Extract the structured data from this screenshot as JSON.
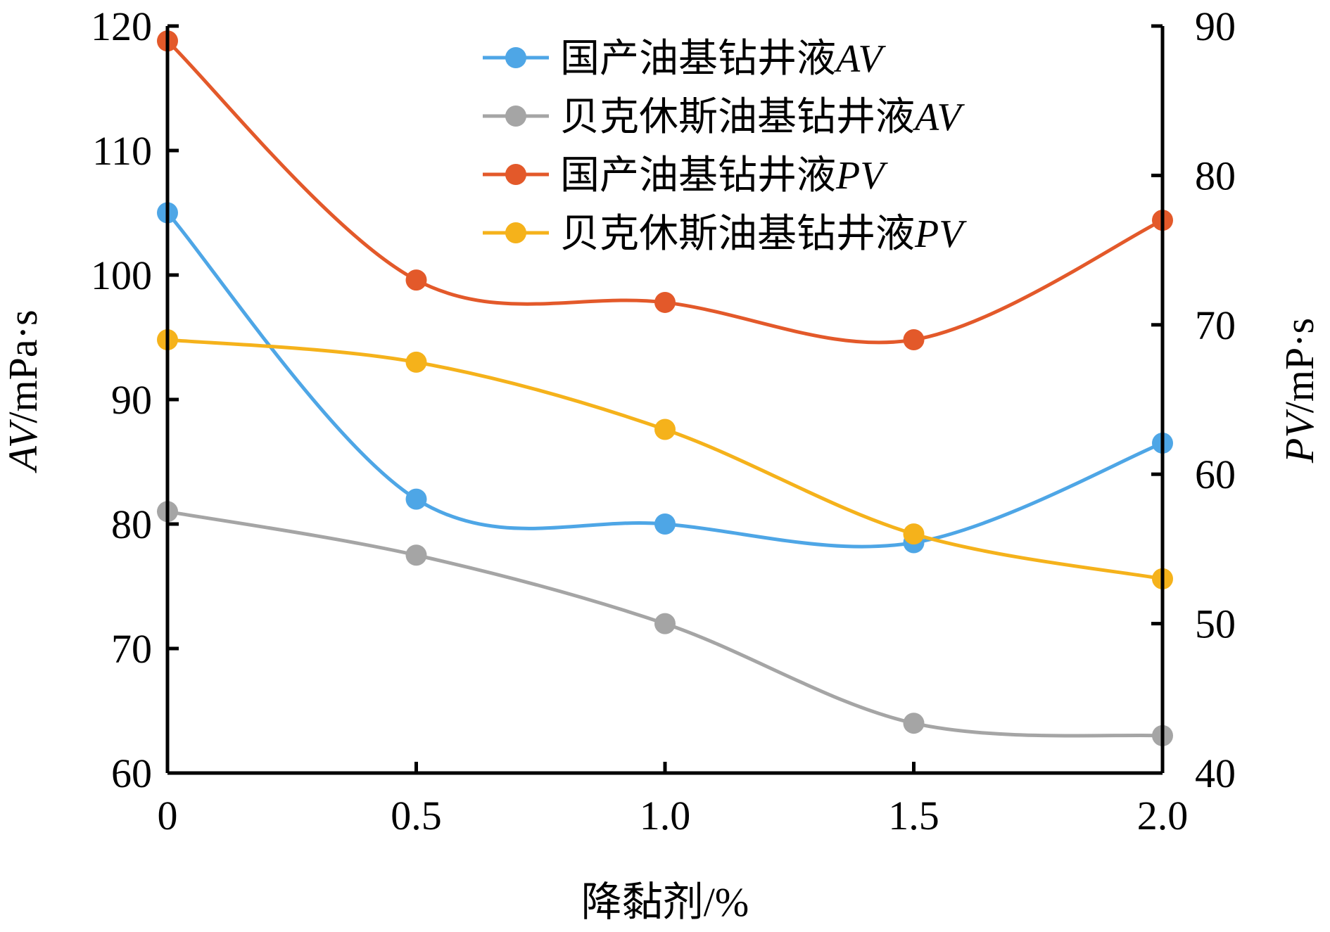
{
  "chart_data": {
    "type": "line",
    "x": [
      0,
      0.5,
      1.0,
      1.5,
      2.0
    ],
    "x_tick_labels": [
      "0",
      "0.5",
      "1.0",
      "1.5",
      "2.0"
    ],
    "xlabel": "降黏剂/%",
    "ylabel_left": {
      "italic": "AV",
      "rest": "/mPa·s"
    },
    "ylabel_right": {
      "italic": "PV",
      "rest": "/mP·s"
    },
    "ylim_left": [
      60,
      120
    ],
    "yticks_left": [
      60,
      70,
      80,
      90,
      100,
      110,
      120
    ],
    "ylim_right": [
      40,
      90
    ],
    "yticks_right": [
      40,
      50,
      60,
      70,
      80,
      90
    ],
    "grid": false,
    "legend_position": "top",
    "series": [
      {
        "name": "国产油基钻井液",
        "name_italic": "AV",
        "axis": "left",
        "color": "#4ea6e6",
        "values": [
          105,
          82,
          80,
          78.5,
          86.5
        ]
      },
      {
        "name": "贝克休斯油基钻井液",
        "name_italic": "AV",
        "axis": "left",
        "color": "#a5a5a5",
        "values": [
          81,
          77.5,
          72,
          64,
          63
        ]
      },
      {
        "name": "国产油基钻井液",
        "name_italic": "PV",
        "axis": "right",
        "color": "#e3592a",
        "values": [
          89,
          73,
          71.5,
          69,
          77
        ]
      },
      {
        "name": "贝克休斯油基钻井液",
        "name_italic": "PV",
        "axis": "right",
        "color": "#f5b21b",
        "values": [
          69,
          67.5,
          63,
          56,
          53
        ]
      }
    ]
  }
}
